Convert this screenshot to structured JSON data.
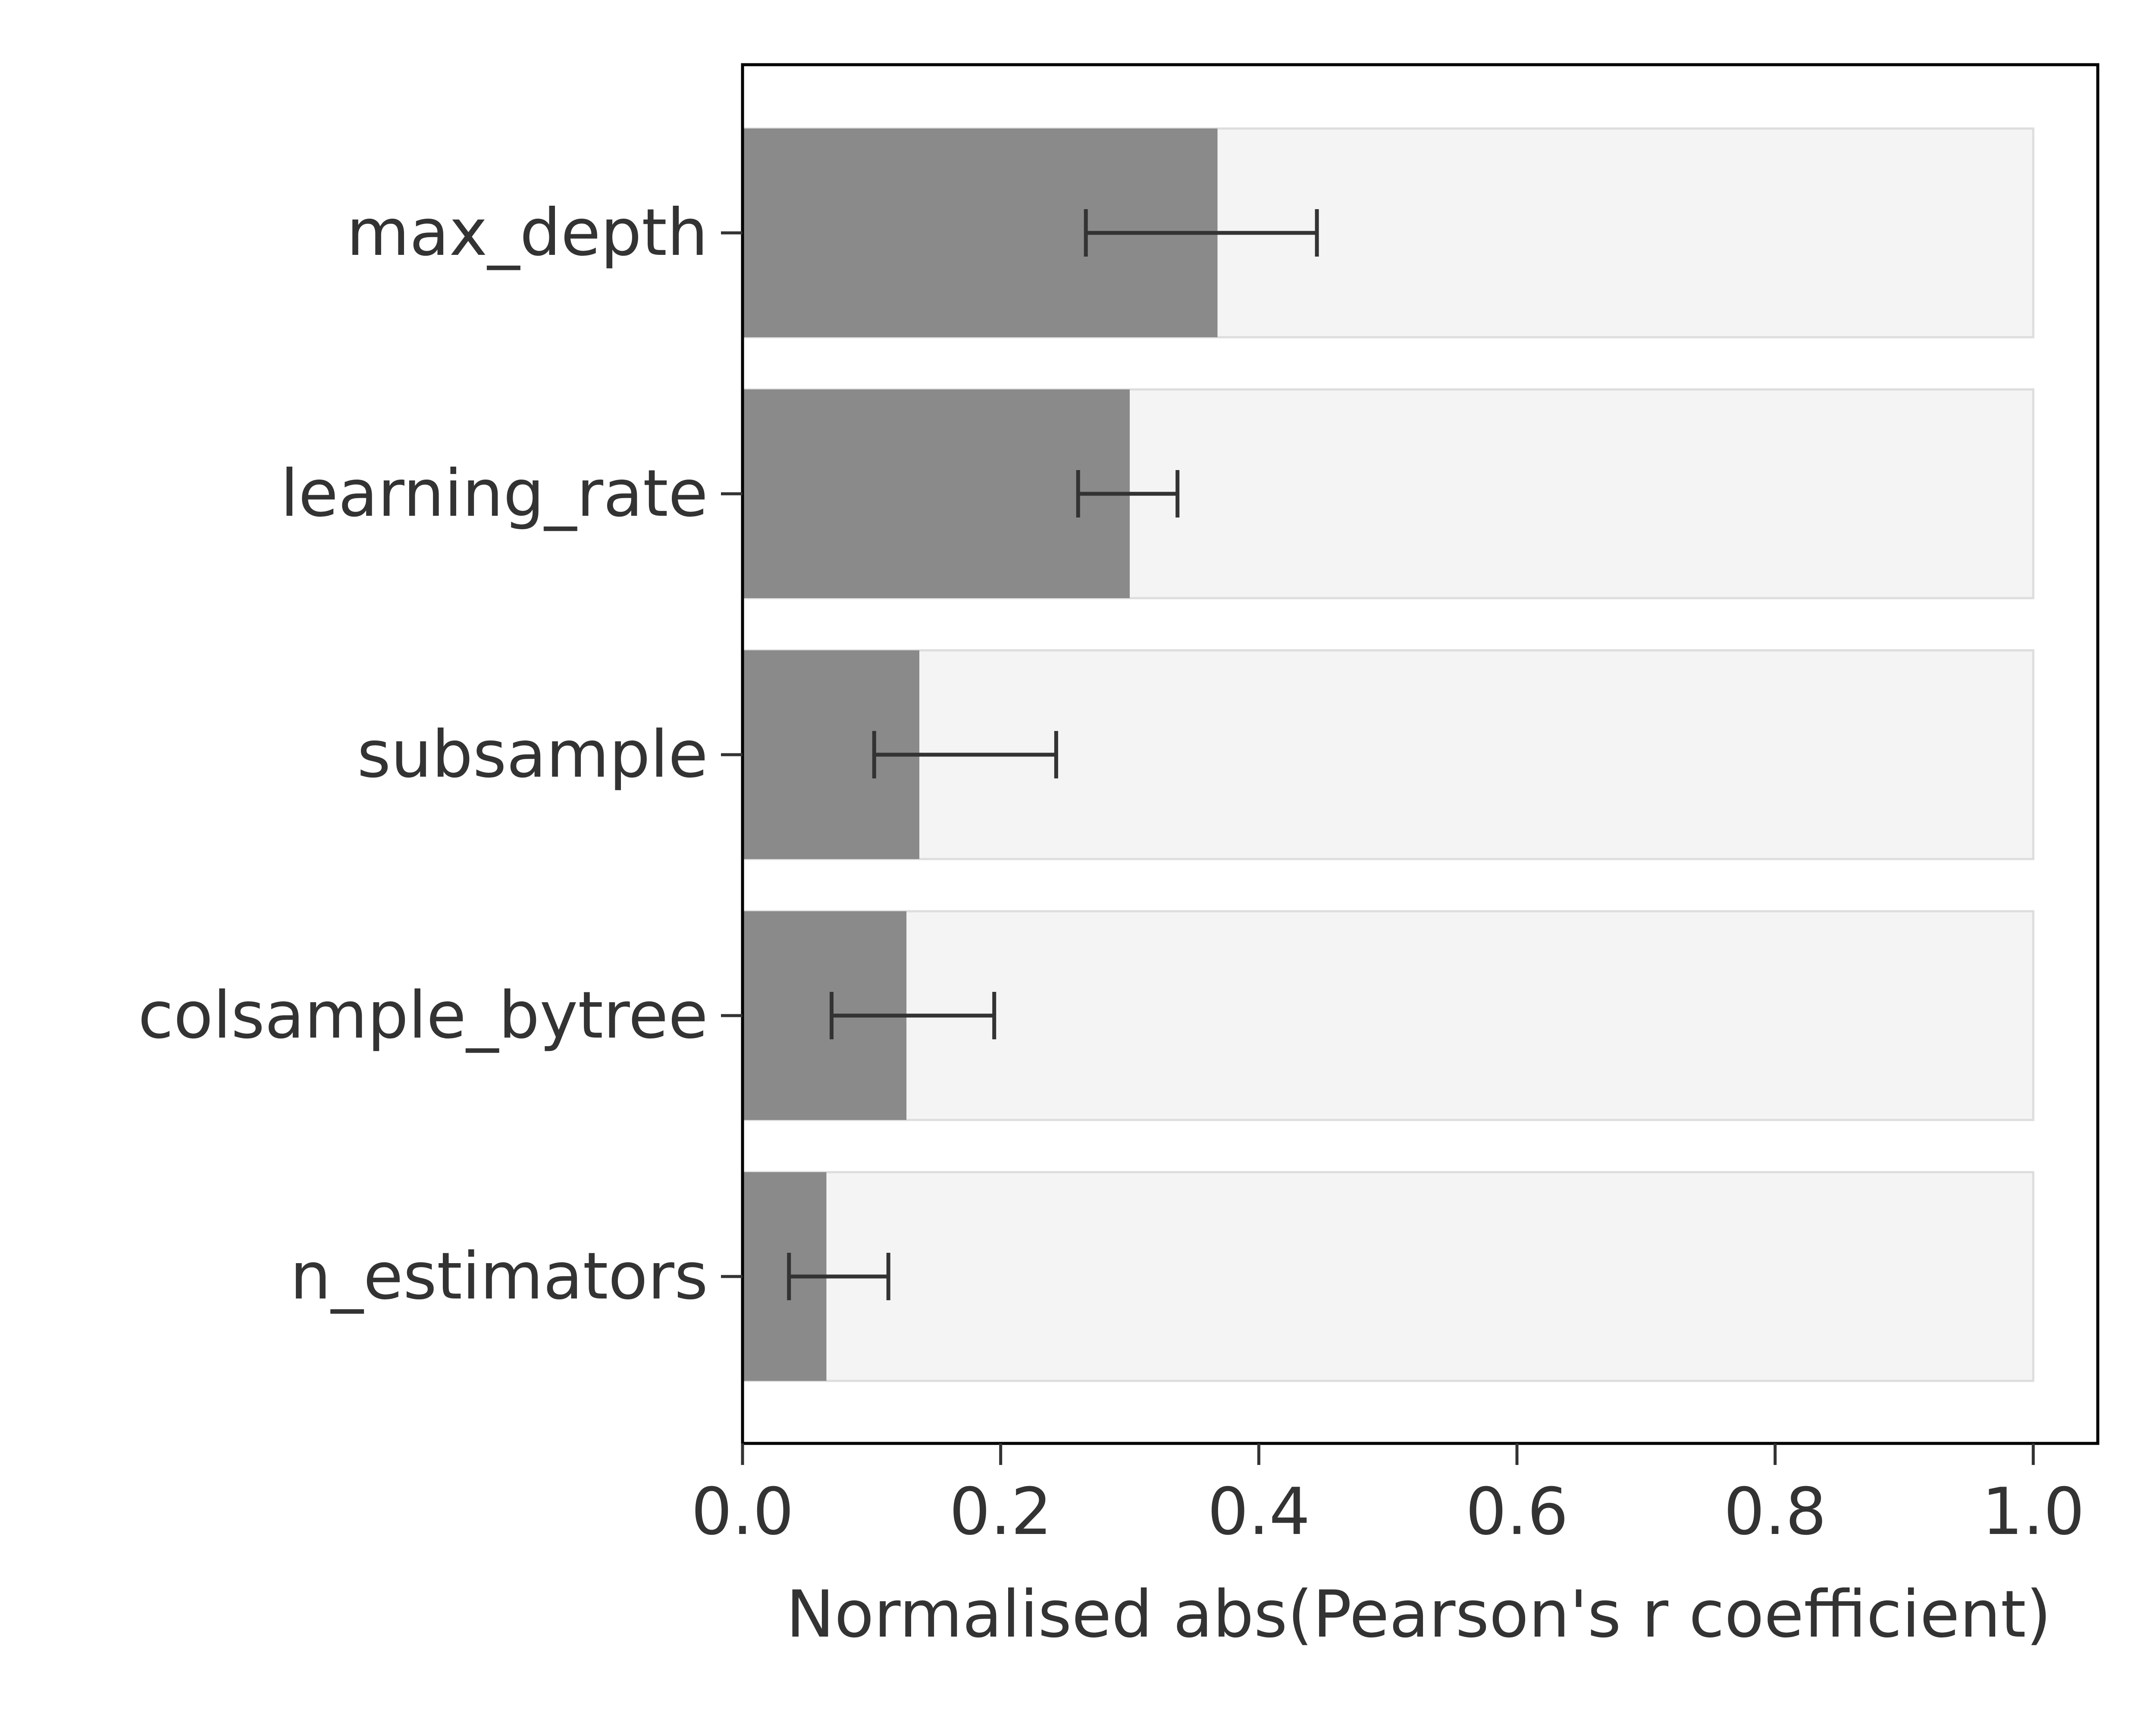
{
  "chart_data": {
    "type": "bar",
    "orientation": "horizontal",
    "categories": [
      "max_depth",
      "learning_rate",
      "subsample",
      "colsample_bytree",
      "n_estimators"
    ],
    "values": [
      0.368,
      0.3,
      0.137,
      0.127,
      0.065
    ],
    "error_low": [
      0.266,
      0.26,
      0.102,
      0.069,
      0.036
    ],
    "error_high": [
      0.445,
      0.337,
      0.243,
      0.195,
      0.113
    ],
    "background_max": 1.0,
    "xlabel": "Normalised abs(Pearson's r coefficient)",
    "ylabel": "",
    "xlim": [
      0.0,
      1.05
    ],
    "xticks": [
      0.0,
      0.2,
      0.4,
      0.6,
      0.8,
      1.0
    ],
    "xtick_labels": [
      "0.0",
      "0.2",
      "0.4",
      "0.6",
      "0.8",
      "1.0"
    ],
    "grid": false,
    "colors": {
      "bar": "#8a8a8a",
      "background_bar": "#f4f4f4",
      "background_bar_edge": "#dddddd",
      "error_bar": "#333333",
      "axes": "#000000",
      "text": "#333333"
    }
  }
}
